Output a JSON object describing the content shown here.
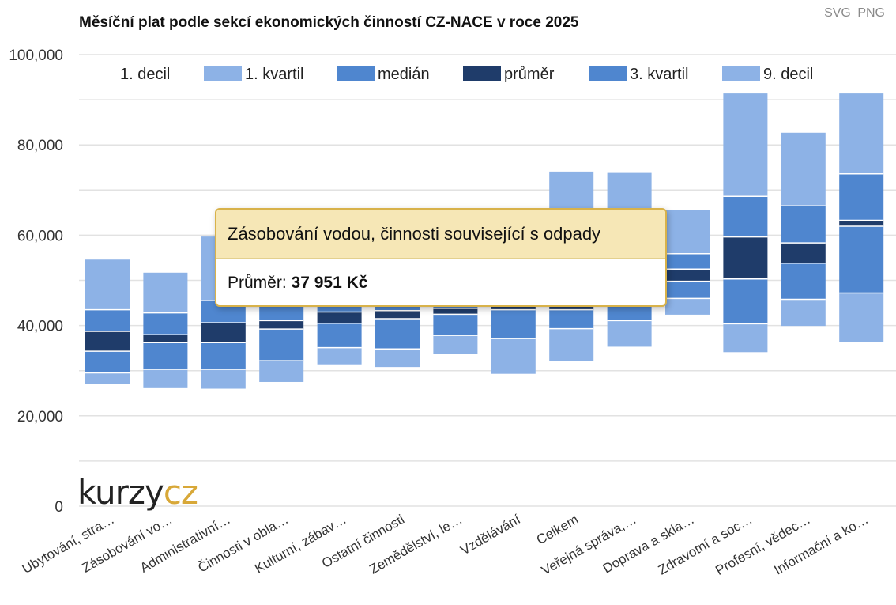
{
  "export": {
    "svg_label": "SVG",
    "png_label": "PNG"
  },
  "tooltip": {
    "title": "Zásobování vodou, činnosti související s odpady",
    "value_label": "Průměr: ",
    "value": "37 951 Kč"
  },
  "logo": {
    "part1": "kurzy",
    "part2": "cz"
  },
  "colors": {
    "light": "#8db2e6",
    "mid": "#4f86cf",
    "dark": "#1f3c6a",
    "grid": "#e2e2e2"
  },
  "chart_data": {
    "type": "bar",
    "title": "Měsíční plat podle sekcí ekonomických činností CZ-NACE v roce 2025",
    "xlabel": "",
    "ylabel": "",
    "ylim": [
      0,
      100000
    ],
    "yticks": [
      "0",
      "20,000",
      "40,000",
      "60,000",
      "80,000",
      "100,000"
    ],
    "ytick_values": [
      0,
      20000,
      40000,
      60000,
      80000,
      100000
    ],
    "grid": true,
    "legend_position": "top",
    "legend": [
      "1. decil",
      "1. kvartil",
      "medián",
      "průměr",
      "3. kvartil",
      "9. decil"
    ],
    "categories": [
      "Ubytování, stra…",
      "Zásobování vo…",
      "Administrativní…",
      "Činnosti v obla…",
      "Kulturní, zábav…",
      "Ostatní činnosti",
      "Zemědělství, le…",
      "Vzdělávání",
      "Celkem",
      "Veřejná správa,…",
      "Doprava a skla…",
      "Zdravotní a soc…",
      "Profesní, vědec…",
      "Informační a ko…"
    ],
    "series": [
      {
        "name": "1. decil",
        "values": [
          27000,
          26300,
          26000,
          27500,
          31400,
          30800,
          33700,
          29300,
          32200,
          35300,
          42400,
          34100,
          39900,
          36400
        ]
      },
      {
        "name": "1. kvartil",
        "values": [
          29500,
          30300,
          30300,
          32200,
          35100,
          34800,
          37800,
          37100,
          39300,
          41100,
          46000,
          40400,
          45800,
          47200
        ]
      },
      {
        "name": "medián",
        "values": [
          34300,
          36200,
          36200,
          39200,
          40500,
          41500,
          42500,
          43500,
          43500,
          44700,
          49800,
          50300,
          53800,
          62000
        ]
      },
      {
        "name": "průměr",
        "values": [
          38700,
          37951,
          40600,
          41100,
          43000,
          43300,
          43800,
          44700,
          46600,
          46100,
          52500,
          59600,
          58300,
          63300
        ]
      },
      {
        "name": "3. kvartil",
        "values": [
          43500,
          42800,
          45500,
          46700,
          48800,
          49100,
          50000,
          52200,
          56700,
          56700,
          55900,
          68600,
          66500,
          73600
        ]
      },
      {
        "name": "9. decil",
        "values": [
          54600,
          51700,
          59700,
          59500,
          59700,
          61200,
          62200,
          62900,
          74100,
          73800,
          65600,
          91400,
          82700,
          91400
        ]
      }
    ]
  }
}
